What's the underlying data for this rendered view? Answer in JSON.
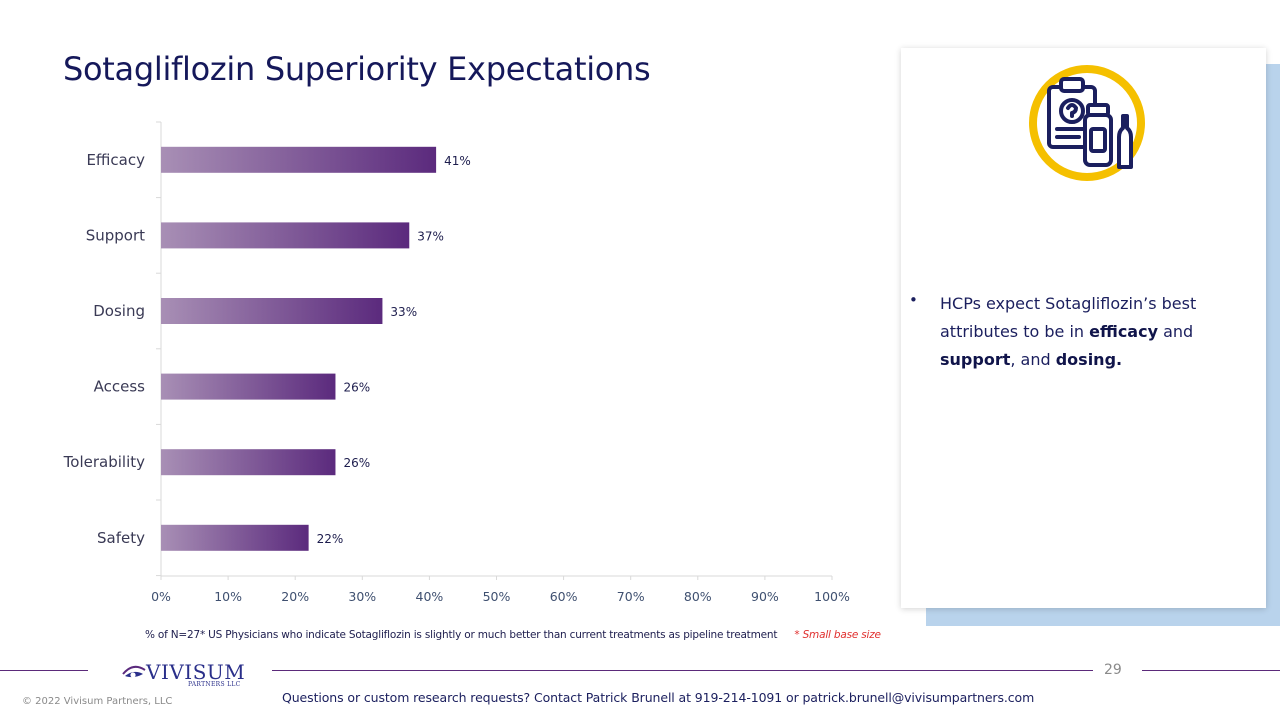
{
  "slide": {
    "title": "Sotagliflozin Superiority Expectations",
    "footnote": "% of N=27* US Physicians who indicate Sotagliflozin is slightly or much better than current treatments as pipeline treatment",
    "footnote_flag": "* Small base size",
    "page_number": "29",
    "copyright": "© 2022 Vivisum Partners, LLC",
    "contact": "Questions or custom research  requests? Contact Patrick Brunell at 919-214-1091 or patrick.brunell@vivisumpartners.com",
    "logo": {
      "name": "VIVISUM",
      "sub": "PARTNERS LLC"
    }
  },
  "panel": {
    "icon": "clipboard-medicine-icon",
    "bullet": {
      "part1": "HCPs expect Sotagliflozin’s best attributes to be in ",
      "bold1": "efficacy",
      "part2": " and ",
      "bold2": "support",
      "part3": ", and ",
      "bold3": "dosing."
    }
  },
  "colors": {
    "bar_start": "#a88fb5",
    "bar_end": "#5b2a7d",
    "title": "#15185a",
    "icon_ring": "#f5c000",
    "icon_navy": "#1b1f5e",
    "panel_shadow": "#b9d3ec",
    "footnote_flag": "#e0302f"
  },
  "chart_data": {
    "type": "bar",
    "orientation": "horizontal",
    "categories": [
      "Efficacy",
      "Support",
      "Dosing",
      "Access",
      "Tolerability",
      "Safety"
    ],
    "values": [
      41,
      37,
      33,
      26,
      26,
      22
    ],
    "value_labels": [
      "41%",
      "37%",
      "33%",
      "26%",
      "26%",
      "22%"
    ],
    "xlim": [
      0,
      100
    ],
    "xticks": [
      "0%",
      "10%",
      "20%",
      "30%",
      "40%",
      "50%",
      "60%",
      "70%",
      "80%",
      "90%",
      "100%"
    ],
    "grid": false,
    "legend": "none"
  }
}
